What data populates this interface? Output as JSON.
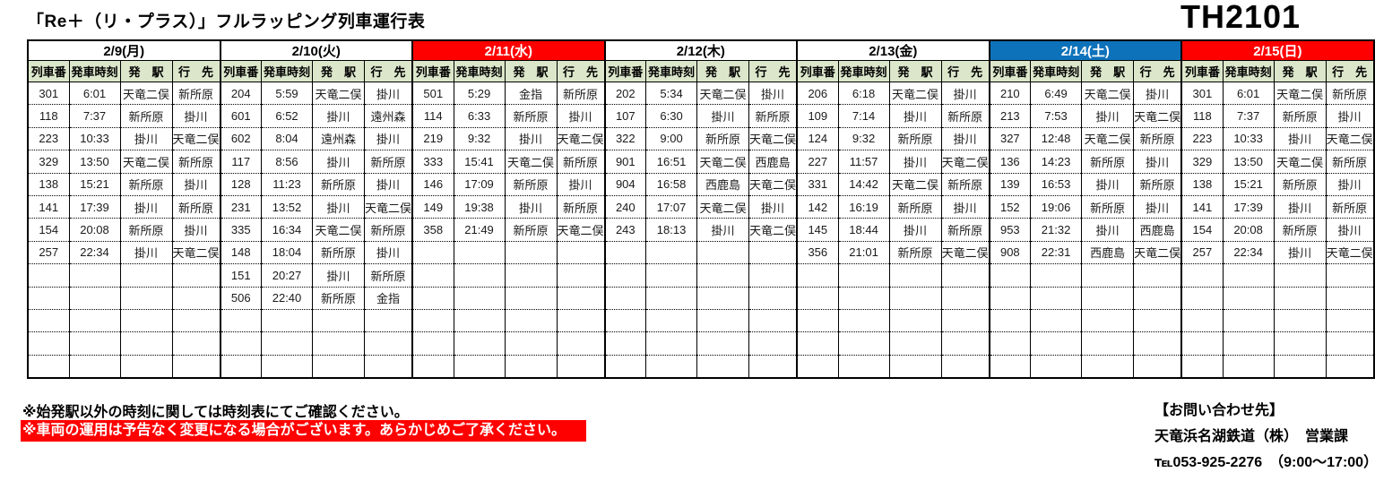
{
  "title": "「Re＋（リ・プラス）」フルラッピング列車運行表",
  "doc_code": "TH2101",
  "colors": {
    "accent_red": "#ff0000",
    "accent_blue": "#0e72bb",
    "subheader_green": "#dbe6ca",
    "day_header_white": "#ffffff"
  },
  "columns": [
    "列車番",
    "発車時刻",
    "発　駅",
    "行　先"
  ],
  "visible_row_count": 13,
  "days": [
    {
      "label": "2/9(月)",
      "header_bg": "#ffffff",
      "header_fg": "#000000",
      "rows": [
        [
          "301",
          "6:01",
          "天竜二俣",
          "新所原"
        ],
        [
          "118",
          "7:37",
          "新所原",
          "掛川"
        ],
        [
          "223",
          "10:33",
          "掛川",
          "天竜二俣"
        ],
        [
          "329",
          "13:50",
          "天竜二俣",
          "新所原"
        ],
        [
          "138",
          "15:21",
          "新所原",
          "掛川"
        ],
        [
          "141",
          "17:39",
          "掛川",
          "新所原"
        ],
        [
          "154",
          "20:08",
          "新所原",
          "掛川"
        ],
        [
          "257",
          "22:34",
          "掛川",
          "天竜二俣"
        ]
      ]
    },
    {
      "label": "2/10(火)",
      "header_bg": "#ffffff",
      "header_fg": "#000000",
      "rows": [
        [
          "204",
          "5:59",
          "天竜二俣",
          "掛川"
        ],
        [
          "601",
          "6:52",
          "掛川",
          "遠州森"
        ],
        [
          "602",
          "8:04",
          "遠州森",
          "掛川"
        ],
        [
          "117",
          "8:56",
          "掛川",
          "新所原"
        ],
        [
          "128",
          "11:23",
          "新所原",
          "掛川"
        ],
        [
          "231",
          "13:52",
          "掛川",
          "天竜二俣"
        ],
        [
          "335",
          "16:34",
          "天竜二俣",
          "新所原"
        ],
        [
          "148",
          "18:04",
          "新所原",
          "掛川"
        ],
        [
          "151",
          "20:27",
          "掛川",
          "新所原"
        ],
        [
          "506",
          "22:40",
          "新所原",
          "金指"
        ]
      ]
    },
    {
      "label": "2/11(水)",
      "header_bg": "#ff0000",
      "header_fg": "#ffffff",
      "rows": [
        [
          "501",
          "5:29",
          "金指",
          "新所原"
        ],
        [
          "114",
          "6:33",
          "新所原",
          "掛川"
        ],
        [
          "219",
          "9:32",
          "掛川",
          "天竜二俣"
        ],
        [
          "333",
          "15:41",
          "天竜二俣",
          "新所原"
        ],
        [
          "146",
          "17:09",
          "新所原",
          "掛川"
        ],
        [
          "149",
          "19:38",
          "掛川",
          "新所原"
        ],
        [
          "358",
          "21:49",
          "新所原",
          "天竜二俣"
        ]
      ]
    },
    {
      "label": "2/12(木)",
      "header_bg": "#ffffff",
      "header_fg": "#000000",
      "rows": [
        [
          "202",
          "5:34",
          "天竜二俣",
          "掛川"
        ],
        [
          "107",
          "6:30",
          "掛川",
          "新所原"
        ],
        [
          "322",
          "9:00",
          "新所原",
          "天竜二俣"
        ],
        [
          "901",
          "16:51",
          "天竜二俣",
          "西鹿島"
        ],
        [
          "904",
          "16:58",
          "西鹿島",
          "天竜二俣"
        ],
        [
          "240",
          "17:07",
          "天竜二俣",
          "掛川"
        ],
        [
          "243",
          "18:13",
          "掛川",
          "天竜二俣"
        ]
      ]
    },
    {
      "label": "2/13(金)",
      "header_bg": "#ffffff",
      "header_fg": "#000000",
      "rows": [
        [
          "206",
          "6:18",
          "天竜二俣",
          "掛川"
        ],
        [
          "109",
          "7:14",
          "掛川",
          "新所原"
        ],
        [
          "124",
          "9:32",
          "新所原",
          "掛川"
        ],
        [
          "227",
          "11:57",
          "掛川",
          "天竜二俣"
        ],
        [
          "331",
          "14:42",
          "天竜二俣",
          "新所原"
        ],
        [
          "142",
          "16:19",
          "新所原",
          "掛川"
        ],
        [
          "145",
          "18:44",
          "掛川",
          "新所原"
        ],
        [
          "356",
          "21:01",
          "新所原",
          "天竜二俣"
        ]
      ]
    },
    {
      "label": "2/14(土)",
      "header_bg": "#0e72bb",
      "header_fg": "#ffffff",
      "rows": [
        [
          "210",
          "6:49",
          "天竜二俣",
          "掛川"
        ],
        [
          "213",
          "7:53",
          "掛川",
          "天竜二俣"
        ],
        [
          "327",
          "12:48",
          "天竜二俣",
          "新所原"
        ],
        [
          "136",
          "14:23",
          "新所原",
          "掛川"
        ],
        [
          "139",
          "16:53",
          "掛川",
          "新所原"
        ],
        [
          "152",
          "19:06",
          "新所原",
          "掛川"
        ],
        [
          "953",
          "21:32",
          "掛川",
          "西鹿島"
        ],
        [
          "908",
          "22:31",
          "西鹿島",
          "天竜二俣"
        ]
      ]
    },
    {
      "label": "2/15(日)",
      "header_bg": "#ff0000",
      "header_fg": "#ffffff",
      "rows": [
        [
          "301",
          "6:01",
          "天竜二俣",
          "新所原"
        ],
        [
          "118",
          "7:37",
          "新所原",
          "掛川"
        ],
        [
          "223",
          "10:33",
          "掛川",
          "天竜二俣"
        ],
        [
          "329",
          "13:50",
          "天竜二俣",
          "新所原"
        ],
        [
          "138",
          "15:21",
          "新所原",
          "掛川"
        ],
        [
          "141",
          "17:39",
          "掛川",
          "新所原"
        ],
        [
          "154",
          "20:08",
          "新所原",
          "掛川"
        ],
        [
          "257",
          "22:34",
          "掛川",
          "天竜二俣"
        ]
      ]
    }
  ],
  "notes": {
    "note1": "※始発駅以外の時刻に関しては時刻表にてご確認ください。",
    "note2": "※車両の運用は予告なく変更になる場合がございます。あらかじめご了承ください。"
  },
  "contact": {
    "heading": "【お問い合わせ先】",
    "company": "天竜浜名湖鉄道（株）　営業課",
    "phone": "℡053-925-2276　（9:00～17:00）"
  }
}
